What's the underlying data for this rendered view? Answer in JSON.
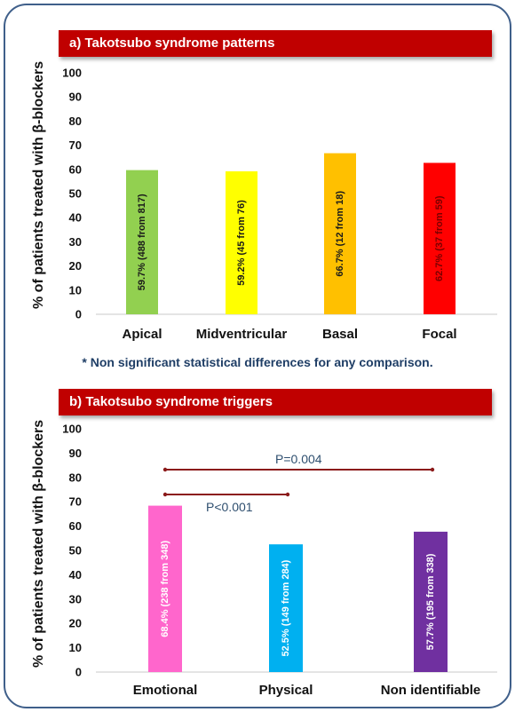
{
  "chart_data": [
    {
      "type": "bar",
      "title": "a)  Takotsubo syndrome patterns",
      "ylabel": "% of patients treated with β-blockers",
      "xlabel": "",
      "ylim": [
        0,
        100
      ],
      "yticks": [
        0,
        10,
        20,
        30,
        40,
        50,
        60,
        70,
        80,
        90,
        100
      ],
      "categories": [
        "Apical",
        "Midventricular",
        "Basal",
        "Focal"
      ],
      "values": [
        59.7,
        59.2,
        66.7,
        62.7
      ],
      "bar_labels": [
        "59.7% (488 from 817)",
        "59.2% (45 from 76)",
        "66.7% (12 from 18)",
        "62.7% (37 from 59)"
      ],
      "colors": [
        "#92d050",
        "#ffff00",
        "#ffc000",
        "#ff0000"
      ],
      "grid": false,
      "note": "* Non significant statistical differences for any comparison."
    },
    {
      "type": "bar",
      "title": "b)  Takotsubo syndrome triggers",
      "ylabel": "% of patients treated with β-blockers",
      "xlabel": "",
      "ylim": [
        0,
        100
      ],
      "yticks": [
        0,
        10,
        20,
        30,
        40,
        50,
        60,
        70,
        80,
        90,
        100
      ],
      "categories": [
        "Emotional",
        "Physical",
        "Non identifiable"
      ],
      "values": [
        68.4,
        52.5,
        57.7
      ],
      "bar_labels": [
        "68.4% (238 from 348)",
        "52.5% (149 from 284)",
        "57.7% (195 from 338)"
      ],
      "colors": [
        "#ff66cc",
        "#00b0f0",
        "#7030a0"
      ],
      "grid": false,
      "annotations": [
        {
          "text": "P<0.001",
          "from": "Emotional",
          "to": "Physical"
        },
        {
          "text": "P=0.004",
          "from": "Emotional",
          "to": "Non identifiable"
        }
      ]
    }
  ]
}
